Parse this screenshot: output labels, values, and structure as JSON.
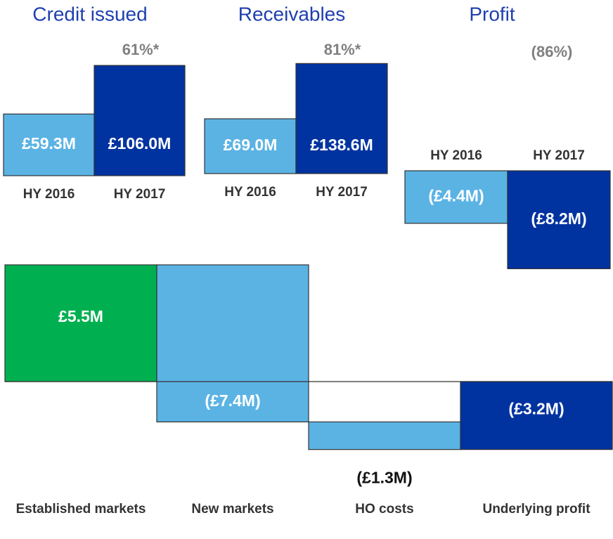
{
  "chart_data": [
    {
      "type": "bar",
      "title": "Credit issued",
      "annotation": "61%*",
      "categories": [
        "HY 2016",
        "HY 2017"
      ],
      "values": [
        59.3,
        106.0
      ],
      "value_labels": [
        "£59.3M",
        "£106.0M"
      ],
      "colors": [
        "#5bb3e4",
        "#0033a0"
      ]
    },
    {
      "type": "bar",
      "title": "Receivables",
      "annotation": "81%*",
      "categories": [
        "HY 2016",
        "HY 2017"
      ],
      "values": [
        69.0,
        138.6
      ],
      "value_labels": [
        "£69.0M",
        "£138.6M"
      ],
      "colors": [
        "#5bb3e4",
        "#0033a0"
      ]
    },
    {
      "type": "bar",
      "title": "Profit",
      "annotation": "(86%)",
      "categories": [
        "HY 2016",
        "HY 2017"
      ],
      "values": [
        -4.4,
        -8.2
      ],
      "value_labels": [
        "(£4.4M)",
        "(£8.2M)"
      ],
      "colors": [
        "#5bb3e4",
        "#0033a0"
      ]
    },
    {
      "type": "waterfall",
      "categories": [
        "Established markets",
        "New markets",
        "HO costs",
        "Underlying profit"
      ],
      "values": [
        5.5,
        -7.4,
        -1.3,
        -3.2
      ],
      "value_labels": [
        "£5.5M",
        "(£7.4M)",
        "(£1.3M)",
        "(£3.2M)"
      ],
      "measures": [
        "relative",
        "relative",
        "relative",
        "total"
      ],
      "colors": [
        "#00b050",
        "#5bb3e4",
        "#5bb3e4",
        "#0033a0"
      ]
    }
  ]
}
